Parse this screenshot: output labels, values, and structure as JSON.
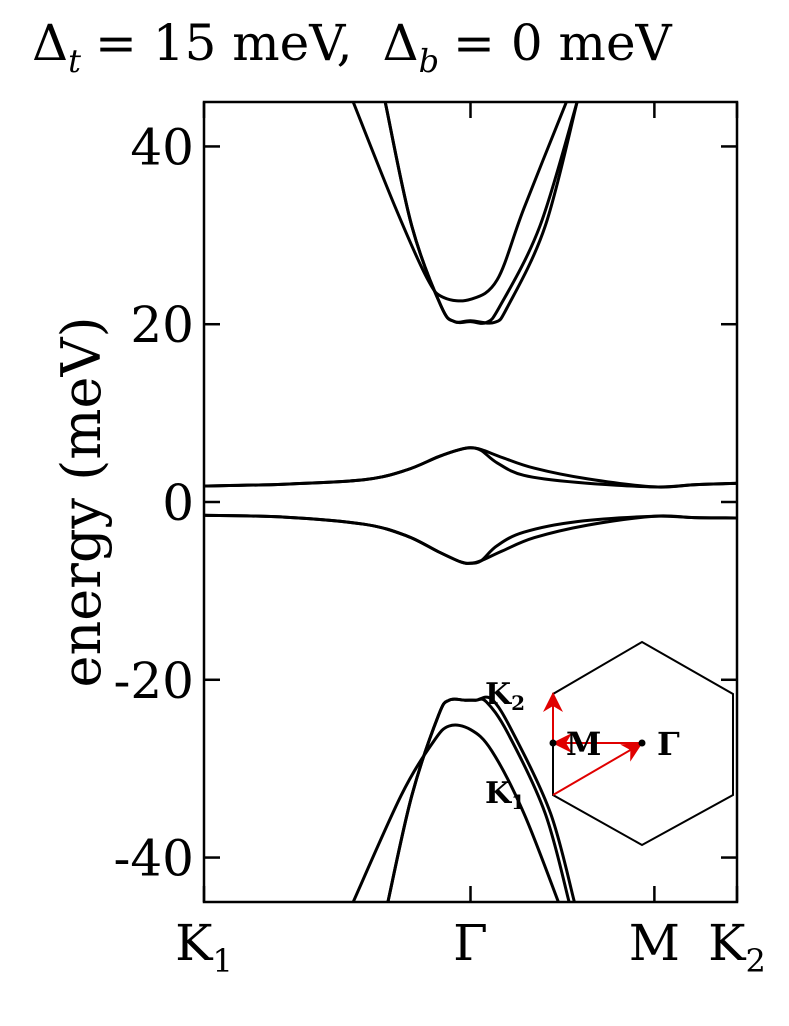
{
  "title": {
    "delta_t_sub": "t",
    "delta_t_value": "= 15 meV,",
    "delta_b_sub": "b",
    "delta_b_value": "= 0 meV"
  },
  "chart_data": {
    "type": "line",
    "ylabel": "energy (meV)",
    "ylim": [
      -45,
      45
    ],
    "yticks": [
      40,
      20,
      0,
      -20,
      -40
    ],
    "ytick_labels": [
      "40",
      "20",
      "0",
      "-20",
      "-40"
    ],
    "xticks": [
      {
        "pos": 0.0,
        "label": "K",
        "sub": "1"
      },
      {
        "pos": 0.5,
        "label": "Γ",
        "sub": ""
      },
      {
        "pos": 0.845,
        "label": "M",
        "sub": ""
      },
      {
        "pos": 1.0,
        "label": "K",
        "sub": "2"
      }
    ],
    "grid": false,
    "line_color": "#000000",
    "series": [
      {
        "points": [
          [
            0.28,
            45
          ],
          [
            0.36,
            33
          ],
          [
            0.42,
            25
          ],
          [
            0.45,
            23
          ],
          [
            0.5,
            22.8
          ],
          [
            0.55,
            25
          ],
          [
            0.6,
            33
          ],
          [
            0.68,
            45
          ]
        ]
      },
      {
        "points": [
          [
            0.34,
            45
          ],
          [
            0.39,
            31
          ],
          [
            0.445,
            22
          ],
          [
            0.47,
            20.3
          ],
          [
            0.5,
            20.3
          ],
          [
            0.53,
            20.2
          ],
          [
            0.555,
            22
          ],
          [
            0.63,
            31
          ],
          [
            0.7,
            45
          ]
        ]
      },
      {
        "points": [
          [
            0.34,
            45
          ],
          [
            0.39,
            31
          ],
          [
            0.445,
            22
          ],
          [
            0.47,
            20.3
          ],
          [
            0.5,
            20.4
          ],
          [
            0.545,
            20.2
          ],
          [
            0.57,
            22
          ],
          [
            0.64,
            31
          ],
          [
            0.7,
            45
          ]
        ]
      },
      {
        "points": [
          [
            0.0,
            1.8
          ],
          [
            0.15,
            2.0
          ],
          [
            0.3,
            2.5
          ],
          [
            0.38,
            3.6
          ],
          [
            0.44,
            5.1
          ],
          [
            0.48,
            5.9
          ],
          [
            0.5,
            6.1
          ],
          [
            0.52,
            5.9
          ],
          [
            0.56,
            5.0
          ],
          [
            0.62,
            3.8
          ],
          [
            0.72,
            2.6
          ],
          [
            0.845,
            1.7
          ],
          [
            0.92,
            1.95
          ],
          [
            1.0,
            2.1
          ]
        ]
      },
      {
        "points": [
          [
            0.0,
            1.8
          ],
          [
            0.15,
            2.0
          ],
          [
            0.3,
            2.5
          ],
          [
            0.38,
            3.6
          ],
          [
            0.44,
            5.1
          ],
          [
            0.48,
            5.9
          ],
          [
            0.5,
            6.1
          ],
          [
            0.52,
            5.8
          ],
          [
            0.55,
            4.4
          ],
          [
            0.6,
            3.0
          ],
          [
            0.7,
            2.2
          ],
          [
            0.845,
            1.7
          ],
          [
            0.92,
            1.95
          ],
          [
            1.0,
            2.1
          ]
        ]
      },
      {
        "points": [
          [
            0.0,
            -1.5
          ],
          [
            0.15,
            -1.7
          ],
          [
            0.3,
            -2.5
          ],
          [
            0.38,
            -3.8
          ],
          [
            0.44,
            -5.6
          ],
          [
            0.48,
            -6.7
          ],
          [
            0.5,
            -6.9
          ],
          [
            0.52,
            -6.6
          ],
          [
            0.55,
            -4.9
          ],
          [
            0.6,
            -3.4
          ],
          [
            0.7,
            -2.2
          ],
          [
            0.845,
            -1.6
          ],
          [
            0.92,
            -1.75
          ],
          [
            1.0,
            -1.8
          ]
        ]
      },
      {
        "points": [
          [
            0.0,
            -1.5
          ],
          [
            0.15,
            -1.7
          ],
          [
            0.3,
            -2.5
          ],
          [
            0.38,
            -3.8
          ],
          [
            0.44,
            -5.6
          ],
          [
            0.48,
            -6.7
          ],
          [
            0.5,
            -6.9
          ],
          [
            0.52,
            -6.6
          ],
          [
            0.56,
            -5.5
          ],
          [
            0.62,
            -4.0
          ],
          [
            0.72,
            -2.6
          ],
          [
            0.845,
            -1.6
          ],
          [
            0.92,
            -1.75
          ],
          [
            1.0,
            -1.8
          ]
        ]
      },
      {
        "points": [
          [
            0.28,
            -45
          ],
          [
            0.37,
            -33
          ],
          [
            0.43,
            -27
          ],
          [
            0.46,
            -25.2
          ],
          [
            0.5,
            -25.6
          ],
          [
            0.54,
            -28
          ],
          [
            0.6,
            -35
          ],
          [
            0.665,
            -45
          ]
        ]
      },
      {
        "points": [
          [
            0.345,
            -45
          ],
          [
            0.39,
            -33
          ],
          [
            0.44,
            -24
          ],
          [
            0.46,
            -22.3
          ],
          [
            0.49,
            -22.3
          ],
          [
            0.51,
            -22.3
          ],
          [
            0.53,
            -22.5
          ],
          [
            0.57,
            -26
          ],
          [
            0.64,
            -35
          ],
          [
            0.685,
            -45
          ]
        ]
      },
      {
        "points": [
          [
            0.345,
            -45
          ],
          [
            0.39,
            -33
          ],
          [
            0.44,
            -24
          ],
          [
            0.46,
            -22.3
          ],
          [
            0.49,
            -22.3
          ],
          [
            0.51,
            -22.3
          ],
          [
            0.54,
            -22.2
          ],
          [
            0.58,
            -26
          ],
          [
            0.65,
            -35
          ],
          [
            0.695,
            -45
          ]
        ]
      }
    ],
    "inset": {
      "labels": {
        "k2": "K",
        "k2_sub": "2",
        "k1": "K",
        "k1_sub": "1",
        "m": "M",
        "gamma": "Γ"
      },
      "hexagon_color": "#000000",
      "arrow_color": "#e00000"
    }
  }
}
